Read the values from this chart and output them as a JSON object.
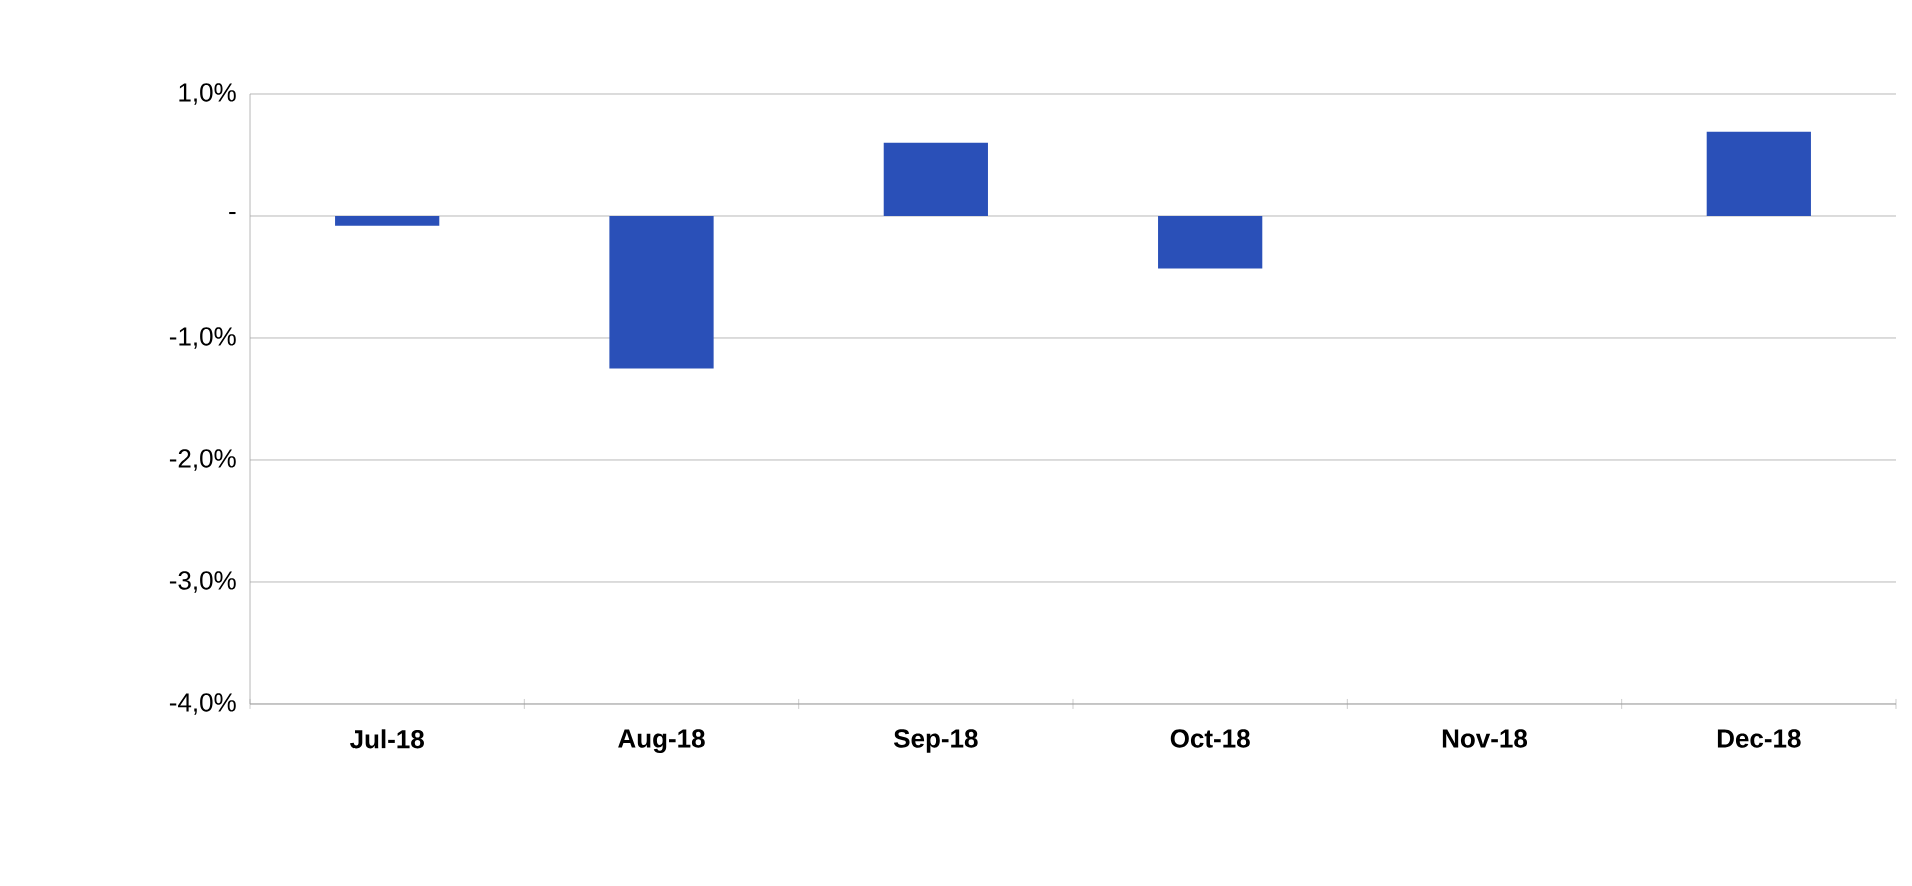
{
  "chart_data": {
    "type": "bar",
    "categories": [
      "Jul-18",
      "Aug-18",
      "Sep-18",
      "Oct-18",
      "Nov-18",
      "Dec-18"
    ],
    "values": [
      -0.08,
      -1.25,
      0.6,
      -0.43,
      0.0,
      0.69
    ],
    "color": "#2a50b8",
    "ylim": [
      -4,
      1
    ],
    "yticks": [
      {
        "value": -4,
        "label": "-4,0%"
      },
      {
        "value": -3,
        "label": "-3,0%"
      },
      {
        "value": -2,
        "label": "-2,0%"
      },
      {
        "value": -1,
        "label": "-1,0%"
      },
      {
        "value": 0,
        "label": "-"
      },
      {
        "value": 1,
        "label": "1,0%"
      }
    ],
    "grid": "y"
  }
}
